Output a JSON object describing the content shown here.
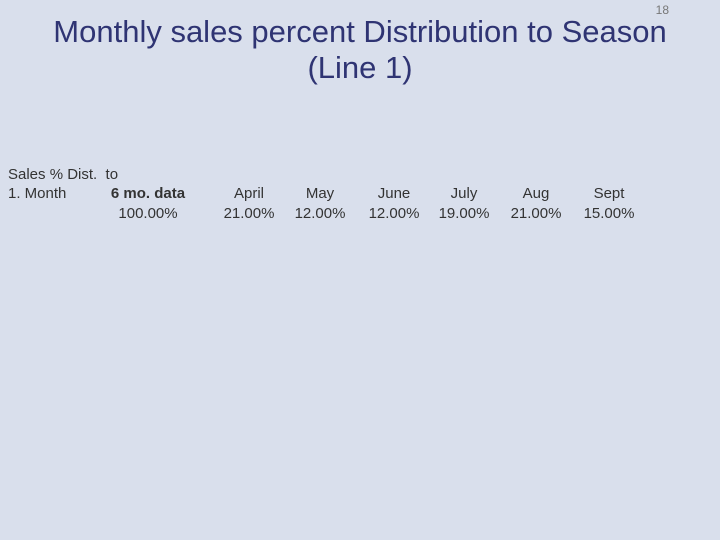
{
  "page_number": "18",
  "title": "Monthly sales percent Distribution to Season (Line 1)",
  "table": {
    "row_label": [
      "Sales % Dist.  to",
      "1. Month"
    ],
    "columns": [
      {
        "header": "6 mo. data",
        "value": "100.00%"
      },
      {
        "header": "April",
        "value": "21.00%"
      },
      {
        "header": "May",
        "value": "12.00%"
      },
      {
        "header": "June",
        "value": "12.00%"
      },
      {
        "header": "July",
        "value": "19.00%"
      },
      {
        "header": "Aug",
        "value": "21.00%"
      },
      {
        "header": "Sept",
        "value": "15.00%"
      }
    ]
  }
}
